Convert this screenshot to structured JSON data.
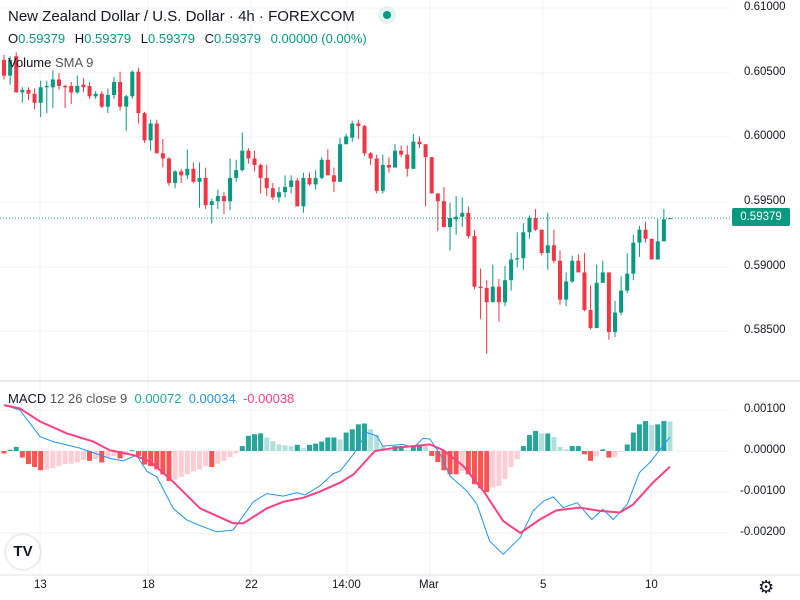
{
  "header": {
    "title": "New Zealand Dollar / U.S. Dollar · 4h · FOREXCOM",
    "ohlc": {
      "o_label": "O",
      "o": "0.59379",
      "h_label": "H",
      "h": "0.59379",
      "l_label": "L",
      "l": "0.59379",
      "c_label": "C",
      "c": "0.59379",
      "change": "0.00000 (0.00%)"
    },
    "volume_label": "Volume",
    "volume_sma": "SMA 9",
    "market_status_icon": "market-open-dot-icon"
  },
  "price_axis": {
    "labels": [
      "0.61000",
      "0.60500",
      "0.60000",
      "0.59500",
      "0.59000",
      "0.58500"
    ],
    "current_price": "0.59379"
  },
  "macd": {
    "label": "MACD",
    "params": "12 26 close 9",
    "hist_value": "0.00072",
    "macd_value": "0.00034",
    "signal_value": "-0.00038",
    "axis_labels": [
      "0.00100",
      "0.00000",
      "-0.00100",
      "-0.00200"
    ]
  },
  "time_axis": {
    "labels": [
      "13",
      "18",
      "22",
      "14:00",
      "Mar",
      "5",
      "10"
    ]
  },
  "icons": {
    "logo": "tradingview-logo",
    "settings": "gear-icon"
  },
  "logo_text": "TV",
  "colors": {
    "up": "#089981",
    "down": "#f23645",
    "macd": "#2196f3",
    "signal": "#ff4081",
    "hist_up_strong": "#26a69a",
    "hist_up_weak": "#b2dfdb",
    "hist_down_strong": "#ff5252",
    "hist_down_weak": "#ffcdd2"
  },
  "chart_data": {
    "type": "candlestick",
    "ohlc": [
      [
        0.606,
        0.6064,
        0.6045,
        0.6048
      ],
      [
        0.6048,
        0.6063,
        0.6041,
        0.606
      ],
      [
        0.6063,
        0.6066,
        0.6035,
        0.6035
      ],
      [
        0.6035,
        0.6039,
        0.6027,
        0.6037
      ],
      [
        0.6037,
        0.6039,
        0.6029,
        0.6034
      ],
      [
        0.6034,
        0.6038,
        0.6022,
        0.6027
      ],
      [
        0.6027,
        0.6044,
        0.6016,
        0.6039
      ],
      [
        0.6039,
        0.6044,
        0.6019,
        0.604
      ],
      [
        0.6039,
        0.6052,
        0.6023,
        0.6045
      ],
      [
        0.6045,
        0.605,
        0.6037,
        0.604
      ],
      [
        0.604,
        0.6041,
        0.6023,
        0.6039
      ],
      [
        0.604,
        0.6043,
        0.6026,
        0.6035
      ],
      [
        0.6035,
        0.6048,
        0.6034,
        0.604
      ],
      [
        0.6041,
        0.6046,
        0.6035,
        0.6039
      ],
      [
        0.604,
        0.6043,
        0.603,
        0.6032
      ],
      [
        0.6032,
        0.6036,
        0.603,
        0.6034
      ],
      [
        0.6034,
        0.6036,
        0.6023,
        0.6024
      ],
      [
        0.6024,
        0.6038,
        0.6019,
        0.6033
      ],
      [
        0.6033,
        0.6047,
        0.603,
        0.6043
      ],
      [
        0.6043,
        0.6051,
        0.6021,
        0.6024
      ],
      [
        0.6024,
        0.6033,
        0.6005,
        0.6032
      ],
      [
        0.6032,
        0.6052,
        0.603,
        0.6051
      ],
      [
        0.6051,
        0.6054,
        0.6011,
        0.6019
      ],
      [
        0.6019,
        0.602,
        0.5996,
        0.5998
      ],
      [
        0.5998,
        0.6014,
        0.599,
        0.6011
      ],
      [
        0.6011,
        0.6014,
        0.5988,
        0.5988
      ],
      [
        0.5988,
        0.5999,
        0.5977,
        0.5984
      ],
      [
        0.5984,
        0.5985,
        0.5963,
        0.5965
      ],
      [
        0.5965,
        0.5975,
        0.5961,
        0.5974
      ],
      [
        0.5974,
        0.5976,
        0.5965,
        0.5971
      ],
      [
        0.5971,
        0.5991,
        0.5968,
        0.5976
      ],
      [
        0.5976,
        0.5981,
        0.5965,
        0.5966
      ],
      [
        0.5966,
        0.5981,
        0.5946,
        0.5969
      ],
      [
        0.5969,
        0.5977,
        0.5945,
        0.5948
      ],
      [
        0.5948,
        0.5953,
        0.5934,
        0.5951
      ],
      [
        0.5951,
        0.596,
        0.5945,
        0.5955
      ],
      [
        0.5955,
        0.5958,
        0.5941,
        0.5951
      ],
      [
        0.5951,
        0.5984,
        0.5944,
        0.5969
      ],
      [
        0.5969,
        0.5983,
        0.5966,
        0.5975
      ],
      [
        0.5975,
        0.6004,
        0.5974,
        0.599
      ],
      [
        0.599,
        0.5992,
        0.598,
        0.5984
      ],
      [
        0.5984,
        0.599,
        0.5974,
        0.5979
      ],
      [
        0.5979,
        0.598,
        0.5957,
        0.5969
      ],
      [
        0.5969,
        0.5979,
        0.5955,
        0.5961
      ],
      [
        0.5961,
        0.5965,
        0.5952,
        0.5954
      ],
      [
        0.5954,
        0.5962,
        0.595,
        0.5958
      ],
      [
        0.5958,
        0.5971,
        0.5954,
        0.5962
      ],
      [
        0.5962,
        0.5971,
        0.5957,
        0.5967
      ],
      [
        0.5967,
        0.5969,
        0.5947,
        0.5947
      ],
      [
        0.5947,
        0.5973,
        0.5942,
        0.5969
      ],
      [
        0.5969,
        0.5973,
        0.5963,
        0.5964
      ],
      [
        0.5964,
        0.5975,
        0.596,
        0.5969
      ],
      [
        0.5969,
        0.5985,
        0.5968,
        0.5983
      ],
      [
        0.5983,
        0.5991,
        0.5971,
        0.5971
      ],
      [
        0.5971,
        0.5977,
        0.5958,
        0.5966
      ],
      [
        0.5966,
        0.6,
        0.5966,
        0.5995
      ],
      [
        0.5995,
        0.6003,
        0.5995,
        0.6001
      ],
      [
        0.6,
        0.6013,
        0.5997,
        0.6011
      ],
      [
        0.6011,
        0.6014,
        0.5999,
        0.6009
      ],
      [
        0.6009,
        0.601,
        0.5986,
        0.5988
      ],
      [
        0.5988,
        0.5989,
        0.5979,
        0.5984
      ],
      [
        0.5984,
        0.5987,
        0.5957,
        0.5959
      ],
      [
        0.5959,
        0.5987,
        0.5957,
        0.5979
      ],
      [
        0.5979,
        0.5985,
        0.5973,
        0.5977
      ],
      [
        0.5977,
        0.5995,
        0.5977,
        0.599
      ],
      [
        0.599,
        0.5994,
        0.5985,
        0.5987
      ],
      [
        0.5987,
        0.5994,
        0.597,
        0.5976
      ],
      [
        0.5976,
        0.6003,
        0.5976,
        0.5997
      ],
      [
        0.5997,
        0.6001,
        0.5992,
        0.5995
      ],
      [
        0.5995,
        0.5995,
        0.5947,
        0.5985
      ],
      [
        0.5985,
        0.5985,
        0.5957,
        0.5957
      ],
      [
        0.5957,
        0.5957,
        0.5928,
        0.5951
      ],
      [
        0.5951,
        0.5962,
        0.5931,
        0.5931
      ],
      [
        0.5931,
        0.595,
        0.5913,
        0.5938
      ],
      [
        0.5937,
        0.5955,
        0.5925,
        0.5939
      ],
      [
        0.5939,
        0.5954,
        0.5931,
        0.5942
      ],
      [
        0.5942,
        0.5947,
        0.5922,
        0.5924
      ],
      [
        0.5924,
        0.5929,
        0.5883,
        0.5885
      ],
      [
        0.5885,
        0.5899,
        0.586,
        0.5884
      ],
      [
        0.5884,
        0.589,
        0.5833,
        0.5873
      ],
      [
        0.5873,
        0.5902,
        0.5873,
        0.5885
      ],
      [
        0.5885,
        0.5891,
        0.5858,
        0.5873
      ],
      [
        0.5873,
        0.5901,
        0.587,
        0.589
      ],
      [
        0.589,
        0.5911,
        0.5882,
        0.5906
      ],
      [
        0.5906,
        0.5927,
        0.59,
        0.5907
      ],
      [
        0.5907,
        0.5934,
        0.5898,
        0.5927
      ],
      [
        0.5927,
        0.594,
        0.5922,
        0.5938
      ],
      [
        0.5938,
        0.5945,
        0.5928,
        0.5929
      ],
      [
        0.5929,
        0.5929,
        0.5909,
        0.5911
      ],
      [
        0.5911,
        0.5942,
        0.5898,
        0.5917
      ],
      [
        0.5917,
        0.5929,
        0.5903,
        0.5905
      ],
      [
        0.5905,
        0.5913,
        0.5871,
        0.5875
      ],
      [
        0.5875,
        0.5896,
        0.587,
        0.5889
      ],
      [
        0.5889,
        0.5909,
        0.5888,
        0.5905
      ],
      [
        0.5905,
        0.591,
        0.5896,
        0.5896
      ],
      [
        0.5896,
        0.5911,
        0.5866,
        0.5867
      ],
      [
        0.5867,
        0.5886,
        0.5852,
        0.5853
      ],
      [
        0.5853,
        0.5902,
        0.5853,
        0.5888
      ],
      [
        0.5888,
        0.5905,
        0.5888,
        0.5896
      ],
      [
        0.5896,
        0.5896,
        0.5844,
        0.585
      ],
      [
        0.585,
        0.5874,
        0.5846,
        0.5865
      ],
      [
        0.5865,
        0.5893,
        0.5863,
        0.5882
      ],
      [
        0.5882,
        0.5911,
        0.588,
        0.5895
      ],
      [
        0.5895,
        0.5925,
        0.589,
        0.5919
      ],
      [
        0.5919,
        0.5932,
        0.5908,
        0.5929
      ],
      [
        0.5929,
        0.5935,
        0.5919,
        0.5922
      ],
      [
        0.5922,
        0.5922,
        0.5906,
        0.5906
      ],
      [
        0.5906,
        0.5937,
        0.5906,
        0.592
      ],
      [
        0.592,
        0.5945,
        0.592,
        0.5937
      ],
      [
        0.59379,
        0.59379,
        0.59379,
        0.59379
      ]
    ],
    "y_range": [
      0.5835,
      0.61
    ],
    "macd_histogram": [
      -6e-05,
      3e-05,
      0.0001,
      -0.00016,
      -0.00032,
      -0.00039,
      -0.00047,
      -0.00045,
      -0.00042,
      -0.00037,
      -0.00032,
      -0.00031,
      -0.00028,
      -0.00022,
      -0.00024,
      -0.0002,
      -0.00028,
      -0.00016,
      -0.00012,
      -0.00018,
      -0.0001,
      2e-05,
      -0.00012,
      -0.00033,
      -0.00037,
      -0.00045,
      -0.00057,
      -0.00073,
      -0.0007,
      -0.00063,
      -0.00057,
      -0.0005,
      -0.00045,
      -0.00037,
      -0.00039,
      -0.00031,
      -0.00024,
      -0.00015,
      -6e-05,
      0.00012,
      0.00037,
      0.00041,
      0.00043,
      0.00033,
      0.00024,
      0.00016,
      0.00014,
      0.00012,
      0.00015,
      7e-05,
      0.00015,
      0.00018,
      0.00023,
      0.00033,
      0.00033,
      0.00028,
      0.00045,
      0.00053,
      0.00065,
      0.00067,
      0.00053,
      0.00039,
      0.00012,
      7e-05,
      0.00012,
      0.00012,
      2e-05,
      0.00012,
      0.00015,
      0.00012,
      -0.00012,
      -0.00027,
      -0.00047,
      -0.00057,
      -0.00057,
      -0.00049,
      -0.00057,
      -0.00081,
      -0.00091,
      -0.001,
      -0.00089,
      -0.00085,
      -0.00069,
      -0.00039,
      -0.0002,
      0.00012,
      0.00039,
      0.00049,
      0.00043,
      0.00043,
      0.00034,
      0.0001,
      4e-05,
      0.00012,
      0.00012,
      -8e-05,
      -0.00024,
      -0.00012,
      4e-05,
      -0.00016,
      -0.00015,
      -2e-05,
      0.00016,
      0.00045,
      0.00065,
      0.00073,
      0.00063,
      0.00065,
      0.00073,
      0.00072
    ],
    "macd_line": [
      [
        0,
        0.00112
      ],
      [
        2.6,
        0.001
      ],
      [
        5.9,
        0.00035
      ],
      [
        8,
        0.00023
      ],
      [
        10.3,
        0.00015
      ],
      [
        12.4,
        7e-05
      ],
      [
        17.3,
        -0.00018
      ],
      [
        19.5,
        -0.00024
      ],
      [
        21.7,
        -0.0001
      ],
      [
        23.4,
        -0.0005
      ],
      [
        25,
        -0.00063
      ],
      [
        27.7,
        -0.0014
      ],
      [
        29.9,
        -0.00168
      ],
      [
        32.1,
        -0.00182
      ],
      [
        34.8,
        -0.00197
      ],
      [
        37.5,
        -0.00193
      ],
      [
        40.8,
        -0.00124
      ],
      [
        43,
        -0.00104
      ],
      [
        45.7,
        -0.0011
      ],
      [
        47.9,
        -0.00102
      ],
      [
        49.3,
        -0.00107
      ],
      [
        51.7,
        -0.00085
      ],
      [
        53.9,
        -0.00055
      ],
      [
        55,
        -0.00049
      ],
      [
        57.2,
        -8e-05
      ],
      [
        59.4,
        0.00045
      ],
      [
        61,
        0.00037
      ],
      [
        62,
        0.00012
      ],
      [
        65.3,
        0.00016
      ],
      [
        67,
        8e-05
      ],
      [
        68.6,
        0.00031
      ],
      [
        69.7,
        0.00029
      ],
      [
        71.4,
        -8e-05
      ],
      [
        73,
        -0.00061
      ],
      [
        75.8,
        -0.00098
      ],
      [
        77.4,
        -0.0013
      ],
      [
        79.5,
        -0.0022
      ],
      [
        81.7,
        -0.00252
      ],
      [
        84.5,
        -0.00211
      ],
      [
        86.6,
        -0.00146
      ],
      [
        88.3,
        -0.00122
      ],
      [
        89.9,
        -0.00112
      ],
      [
        91.5,
        -0.00138
      ],
      [
        93.8,
        -0.00126
      ],
      [
        96.2,
        -0.00167
      ],
      [
        98,
        -0.00142
      ],
      [
        99.7,
        -0.00167
      ],
      [
        102,
        -0.0013
      ],
      [
        104,
        -0.00053
      ],
      [
        105.7,
        -0.00028
      ],
      [
        109,
        0.00034
      ]
    ],
    "signal_line": [
      [
        0,
        0.00112
      ],
      [
        2.6,
        0.00104
      ],
      [
        5.9,
        0.00072
      ],
      [
        10.3,
        0.00043
      ],
      [
        14.6,
        0.00023
      ],
      [
        17.3,
        2e-05
      ],
      [
        21.2,
        -0.0001
      ],
      [
        24,
        -0.00026
      ],
      [
        27.7,
        -0.00075
      ],
      [
        32.1,
        -0.0014
      ],
      [
        37.5,
        -0.00176
      ],
      [
        39.2,
        -0.00176
      ],
      [
        43,
        -0.0014
      ],
      [
        45.7,
        -0.00124
      ],
      [
        49,
        -0.00114
      ],
      [
        51.7,
        -0.00099
      ],
      [
        55,
        -0.00077
      ],
      [
        57.2,
        -0.00057
      ],
      [
        60.7,
        0
      ],
      [
        64,
        8e-05
      ],
      [
        67,
        0.00012
      ],
      [
        69.7,
        0.00016
      ],
      [
        71.9,
        2e-05
      ],
      [
        75.2,
        -0.00037
      ],
      [
        78.5,
        -0.00098
      ],
      [
        81.7,
        -0.00171
      ],
      [
        84.5,
        -0.002
      ],
      [
        87.7,
        -0.00167
      ],
      [
        90.4,
        -0.00145
      ],
      [
        94.2,
        -0.00138
      ],
      [
        97.5,
        -0.00146
      ],
      [
        100.8,
        -0.0015
      ],
      [
        103,
        -0.0013
      ],
      [
        106.2,
        -0.00077
      ],
      [
        109,
        -0.00038
      ]
    ],
    "macd_range": [
      -0.0029,
      0.0012
    ],
    "grid": true
  }
}
